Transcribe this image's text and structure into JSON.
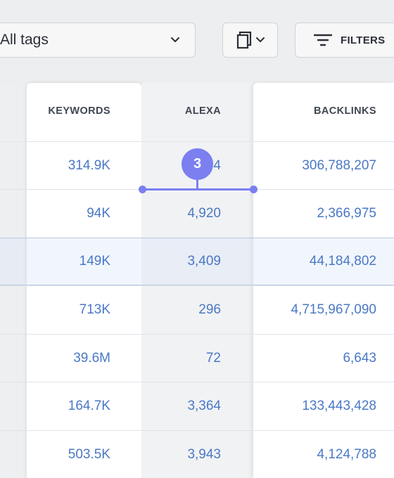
{
  "toolbar": {
    "tag_select_value": "All tags",
    "filters_label": "FILTERS"
  },
  "table": {
    "headers": {
      "keywords": "KEYWORDS",
      "alexa": "ALEXA",
      "backlinks": "BACKLINKS"
    },
    "rows": [
      {
        "keywords": "314.9K",
        "alexa": "4",
        "backlinks": "306,788,207"
      },
      {
        "keywords": "94K",
        "alexa": "4,920",
        "backlinks": "2,366,975"
      },
      {
        "keywords": "149K",
        "alexa": "3,409",
        "backlinks": "44,184,802"
      },
      {
        "keywords": "713K",
        "alexa": "296",
        "backlinks": "4,715,967,090"
      },
      {
        "keywords": "39.6M",
        "alexa": "72",
        "backlinks": "6,643"
      },
      {
        "keywords": "164.7K",
        "alexa": "3,364",
        "backlinks": "133,443,428"
      },
      {
        "keywords": "503.5K",
        "alexa": "3,943",
        "backlinks": "4,124,788"
      }
    ],
    "selected_row_index": 2
  },
  "step_marker": {
    "number": "3"
  },
  "colors": {
    "accent": "#7b7ff0",
    "link": "#4a78c6",
    "header_text": "#3f4651"
  }
}
